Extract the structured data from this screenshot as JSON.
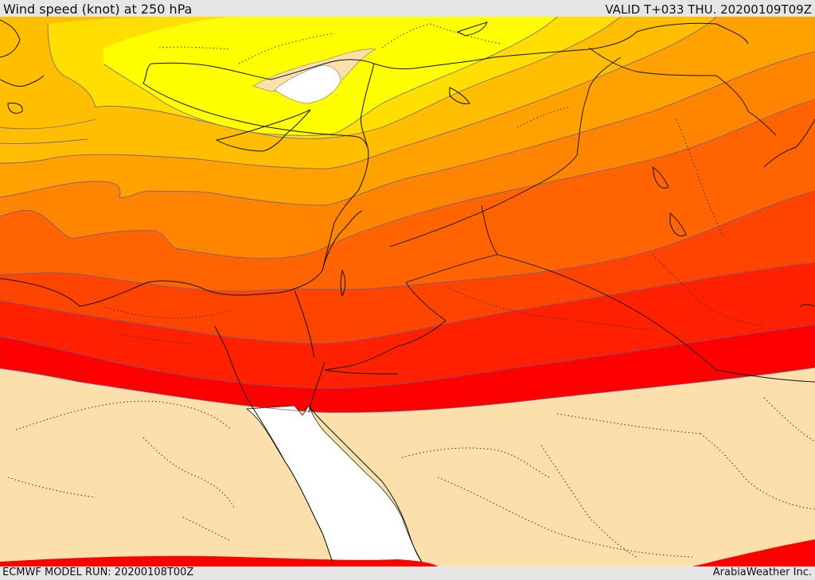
{
  "header": {
    "title": "Wind speed (knot) at 250 hPa",
    "valid": "VALID T+033 THU. 20200109T09Z"
  },
  "footer": {
    "model_run": "ECMWF MODEL RUN: 20200108T00Z",
    "brand": "ArabiaWeather Inc."
  },
  "map": {
    "field": "Wind speed (knot) at 250 hPa",
    "band_colors": {
      "pale": "#fbe0ac",
      "yellow": "#ffff00",
      "gold": "#ffde00",
      "amber": "#ffbf00",
      "orange_light": "#ffa200",
      "orange": "#ff8400",
      "orange_dark": "#ff6400",
      "red_orange": "#ff4400",
      "red_dark": "#ff2000",
      "red": "#ff0000",
      "water_min": "#ffffff"
    }
  }
}
